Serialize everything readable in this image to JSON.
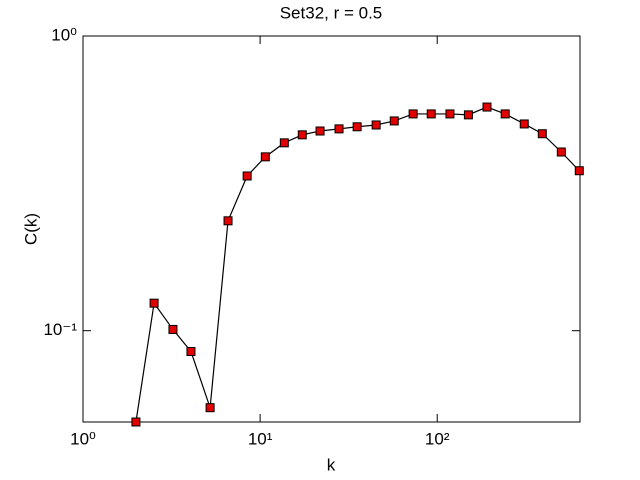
{
  "chart_data": {
    "type": "line",
    "title": "Set32, r = 0.5",
    "xlabel": "k",
    "ylabel": "C(k)",
    "xscale": "log",
    "yscale": "log",
    "xlim": [
      1,
      640
    ],
    "ylim": [
      0.049,
      1
    ],
    "xticks": [
      {
        "value": 1,
        "label": "10⁰"
      },
      {
        "value": 10,
        "label": "10¹"
      },
      {
        "value": 100,
        "label": "10²"
      }
    ],
    "yticks": [
      {
        "value": 0.1,
        "label": "10⁻¹"
      },
      {
        "value": 1,
        "label": "10⁰"
      }
    ],
    "series": [
      {
        "color": "#000000",
        "marker_color": "#e00000",
        "x": [
          1.99,
          2.52,
          3.22,
          4.07,
          5.22,
          6.59,
          8.45,
          10.7,
          13.7,
          17.3,
          21.8,
          27.9,
          35.3,
          45.2,
          57.2,
          73.1,
          92.5,
          118,
          150,
          191,
          242,
          310,
          392,
          502,
          634
        ],
        "values": [
          0.049,
          0.124,
          0.101,
          0.085,
          0.0548,
          0.236,
          0.335,
          0.389,
          0.434,
          0.462,
          0.476,
          0.484,
          0.492,
          0.499,
          0.515,
          0.544,
          0.544,
          0.544,
          0.54,
          0.574,
          0.544,
          0.503,
          0.466,
          0.404,
          0.349
        ]
      }
    ]
  }
}
